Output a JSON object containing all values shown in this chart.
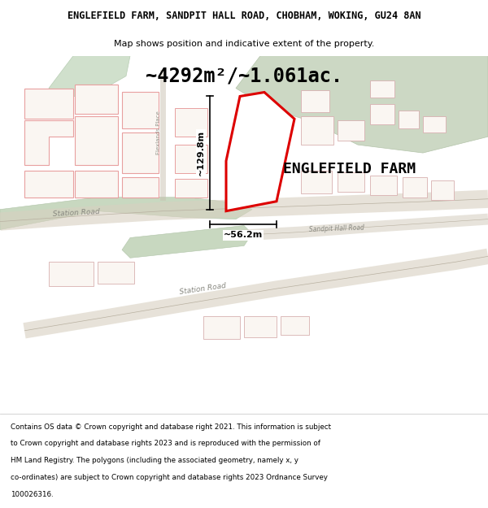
{
  "title": "ENGLEFIELD FARM, SANDPIT HALL ROAD, CHOBHAM, WOKING, GU24 8AN",
  "subtitle": "Map shows position and indicative extent of the property.",
  "area_text": "~4292m²/~1.061ac.",
  "label": "ENGLEFIELD FARM",
  "dim_vert": "~129.8m",
  "dim_horiz": "~56.2m",
  "footer": "Contains OS data © Crown copyright and database right 2021. This information is subject to Crown copyright and database rights 2023 and is reproduced with the permission of HM Land Registry. The polygons (including the associated geometry, namely x, y co-ordinates) are subject to Crown copyright and database rights 2023 Ordnance Survey 100026316.",
  "map_bg": "#ffffff",
  "title_bg": "#ffffff",
  "footer_bg": "#ffffff",
  "road_green": "#c8d8c0",
  "road_green2": "#b8ccb0",
  "outline_pink": "#e8a0a0",
  "outline_light": "#d8b0b0",
  "bld_fill": "#f8f4f0",
  "prop_stroke": "#dd0000",
  "prop_fill": "#ffffff",
  "dim_color": "#000000",
  "label_color": "#000000",
  "area_color": "#000000"
}
